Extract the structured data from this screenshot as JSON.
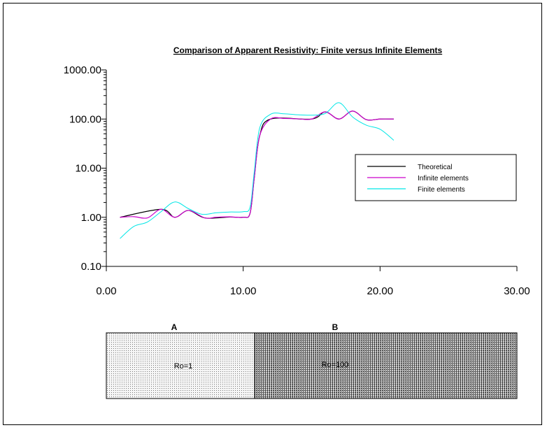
{
  "chart_data": {
    "type": "line",
    "title": "Comparison of Apparent Resistivity: Finite versus Infinite Elements",
    "xlabel": "",
    "ylabel": "",
    "xlim": [
      0,
      30
    ],
    "ylim": [
      0.1,
      1000
    ],
    "y_scale": "log",
    "grid": false,
    "legend_position": "right",
    "x_tick_labels": [
      "0.00",
      "10.00",
      "20.00",
      "30.00"
    ],
    "y_tick_labels": [
      "0.10",
      "1.00",
      "10.00",
      "100.00",
      "1000.00"
    ],
    "series": [
      {
        "name": "Theoretical",
        "color": "#000000",
        "x": [
          1,
          4,
          5,
          6,
          7.2,
          9,
          10,
          10.5,
          10.8,
          11.2,
          12,
          15,
          16,
          17,
          18,
          19,
          20,
          21
        ],
        "y": [
          1,
          1.45,
          1.0,
          1.38,
          0.97,
          1.01,
          1.0,
          1.2,
          6,
          45,
          100,
          100,
          140,
          100,
          145,
          97,
          100,
          100
        ]
      },
      {
        "name": "Infinite elements",
        "color": "#cc00cc",
        "x": [
          1,
          2,
          3,
          4,
          5,
          6,
          7.2,
          8,
          9,
          10,
          10.5,
          10.8,
          11.2,
          12,
          13,
          14,
          15,
          16,
          17,
          18,
          19,
          20,
          21
        ],
        "y": [
          1.0,
          1.03,
          0.97,
          1.45,
          1.0,
          1.38,
          0.97,
          1.0,
          1.02,
          1.0,
          1.2,
          6,
          45,
          100,
          103,
          101,
          100,
          140,
          100,
          145,
          97,
          100,
          100
        ]
      },
      {
        "name": "Finite elements",
        "color": "#00e6e6",
        "x": [
          1,
          2,
          3,
          4,
          5,
          6,
          7,
          8,
          9,
          10,
          10.5,
          10.8,
          11.2,
          12,
          13,
          14,
          15,
          16,
          17,
          18,
          19,
          20,
          21
        ],
        "y": [
          0.37,
          0.65,
          0.8,
          1.3,
          2.05,
          1.5,
          1.15,
          1.23,
          1.28,
          1.3,
          1.6,
          8,
          65,
          125,
          128,
          122,
          120,
          130,
          215,
          110,
          75,
          62,
          37
        ]
      }
    ]
  },
  "blocks": [
    {
      "letter": "A",
      "label": "Ro=1"
    },
    {
      "letter": "B",
      "label": "Ro=100"
    }
  ]
}
